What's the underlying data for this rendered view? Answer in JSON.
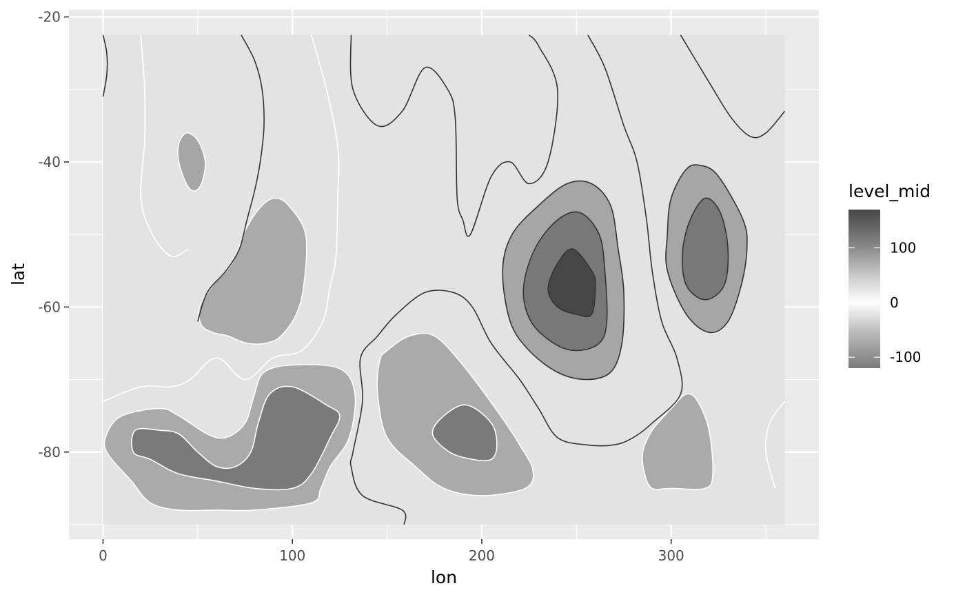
{
  "chart_data": {
    "type": "contour",
    "xlabel": "lon",
    "ylabel": "lat",
    "xlim": [
      -18,
      378
    ],
    "ylim": [
      -92,
      -19
    ],
    "x_ticks": [
      0,
      100,
      200,
      300
    ],
    "x_tick_labels": [
      "0",
      "100",
      "200",
      "300"
    ],
    "y_ticks": [
      -20,
      -40,
      -60,
      -80
    ],
    "y_tick_labels": [
      "-20",
      "-40",
      "-60",
      "-80"
    ],
    "grid": true,
    "data_extent": {
      "lon": [
        0,
        360
      ],
      "lat": [
        -90,
        -22.5
      ]
    },
    "background_fill": "#e3e3e3",
    "panel_color": "#ebebeb",
    "grid_color": "#ffffff",
    "legend": {
      "title": "level_mid",
      "position": "right",
      "range": [
        -120,
        170
      ],
      "ticks": [
        100,
        0,
        -100
      ],
      "tick_labels": [
        "100",
        "0",
        "-100"
      ],
      "gradient": [
        {
          "value": 170,
          "color": "#474747"
        },
        {
          "value": 100,
          "color": "#8a8a8a"
        },
        {
          "value": 50,
          "color": "#c9c9c9"
        },
        {
          "value": 0,
          "color": "#ffffff"
        },
        {
          "value": -50,
          "color": "#c0c0c0"
        },
        {
          "value": -120,
          "color": "#7a7a7a"
        }
      ]
    },
    "regions": [
      {
        "name": "west-blob-small",
        "fill": "#a6a6a6",
        "level_mid": -60,
        "outline": [
          [
            40,
            -37.5
          ],
          [
            44,
            -36
          ],
          [
            50,
            -37
          ],
          [
            54,
            -40
          ],
          [
            52,
            -43
          ],
          [
            48,
            -44
          ],
          [
            44,
            -43
          ],
          [
            40,
            -40
          ]
        ]
      },
      {
        "name": "west-blob-medium",
        "fill": "#aaaaaa",
        "level_mid": -60,
        "outline": [
          [
            52,
            -62.5
          ],
          [
            51,
            -60
          ],
          [
            58,
            -57
          ],
          [
            68,
            -54
          ],
          [
            76,
            -49
          ],
          [
            84,
            -46
          ],
          [
            91,
            -45
          ],
          [
            98,
            -46
          ],
          [
            107,
            -50
          ],
          [
            106,
            -57
          ],
          [
            102,
            -61
          ],
          [
            94,
            -64
          ],
          [
            86,
            -65
          ],
          [
            76,
            -65
          ],
          [
            66,
            -64
          ],
          [
            58,
            -63.5
          ]
        ]
      },
      {
        "name": "southwest-outer",
        "fill": "#aaaaaa",
        "level_mid": -60,
        "outline": [
          [
            2,
            -77.5
          ],
          [
            10,
            -75
          ],
          [
            30,
            -74
          ],
          [
            40,
            -75
          ],
          [
            55,
            -77.5
          ],
          [
            65,
            -78
          ],
          [
            75,
            -76
          ],
          [
            80,
            -72
          ],
          [
            85,
            -69
          ],
          [
            100,
            -68
          ],
          [
            125,
            -68.5
          ],
          [
            133,
            -72
          ],
          [
            130,
            -78
          ],
          [
            120,
            -82
          ],
          [
            115,
            -85
          ],
          [
            110,
            -87
          ],
          [
            80,
            -88
          ],
          [
            60,
            -88
          ],
          [
            40,
            -88
          ],
          [
            25,
            -87
          ],
          [
            15,
            -84
          ],
          [
            2,
            -80
          ]
        ]
      },
      {
        "name": "southwest-inner",
        "fill": "#7a7a7a",
        "level_mid": -100,
        "outline": [
          [
            16,
            -80
          ],
          [
            17,
            -77
          ],
          [
            30,
            -77
          ],
          [
            40,
            -77.5
          ],
          [
            50,
            -80
          ],
          [
            60,
            -82
          ],
          [
            70,
            -82
          ],
          [
            78,
            -80
          ],
          [
            82,
            -76
          ],
          [
            88,
            -72
          ],
          [
            100,
            -71
          ],
          [
            118,
            -73.5
          ],
          [
            125,
            -75
          ],
          [
            120,
            -78
          ],
          [
            110,
            -83
          ],
          [
            100,
            -85
          ],
          [
            80,
            -85
          ],
          [
            60,
            -84
          ],
          [
            40,
            -83
          ],
          [
            25,
            -81
          ]
        ]
      },
      {
        "name": "south-center-outer",
        "fill": "#aaaaaa",
        "level_mid": -60,
        "outline": [
          [
            146,
            -67.5
          ],
          [
            150,
            -66
          ],
          [
            162,
            -64
          ],
          [
            175,
            -64
          ],
          [
            190,
            -68
          ],
          [
            210,
            -75
          ],
          [
            220,
            -79
          ],
          [
            227,
            -82.5
          ],
          [
            223,
            -85
          ],
          [
            200,
            -86
          ],
          [
            180,
            -85
          ],
          [
            165,
            -82
          ],
          [
            150,
            -78
          ],
          [
            145,
            -72
          ]
        ]
      },
      {
        "name": "south-center-inner",
        "fill": "#7a7a7a",
        "level_mid": -100,
        "outline": [
          [
            174,
            -77.5
          ],
          [
            180,
            -75
          ],
          [
            192,
            -73.5
          ],
          [
            205,
            -76
          ],
          [
            208,
            -79
          ],
          [
            205,
            -81
          ],
          [
            195,
            -81
          ],
          [
            183,
            -80
          ]
        ]
      },
      {
        "name": "east-peak-outer",
        "fill": "#a6a6a6",
        "level_mid": 70,
        "outline": [
          [
            211,
            -55
          ],
          [
            216,
            -50
          ],
          [
            230,
            -46
          ],
          [
            245,
            -43
          ],
          [
            258,
            -43
          ],
          [
            268,
            -46
          ],
          [
            272,
            -52
          ],
          [
            275,
            -58
          ],
          [
            274,
            -65
          ],
          [
            268,
            -69
          ],
          [
            255,
            -70
          ],
          [
            240,
            -69
          ],
          [
            225,
            -66
          ],
          [
            215,
            -62
          ]
        ]
      },
      {
        "name": "east-peak-mid",
        "fill": "#787878",
        "level_mid": 120,
        "outline": [
          [
            222,
            -57.5
          ],
          [
            228,
            -52
          ],
          [
            240,
            -48
          ],
          [
            252,
            -47
          ],
          [
            262,
            -50
          ],
          [
            265,
            -55
          ],
          [
            266,
            -62
          ],
          [
            262,
            -65
          ],
          [
            250,
            -66
          ],
          [
            238,
            -65
          ],
          [
            226,
            -62
          ]
        ]
      },
      {
        "name": "east-peak-inner",
        "fill": "#474747",
        "level_mid": 170,
        "outline": [
          [
            235,
            -57.5
          ],
          [
            240,
            -54
          ],
          [
            248,
            -52
          ],
          [
            258,
            -55
          ],
          [
            260,
            -57
          ],
          [
            258,
            -61
          ],
          [
            250,
            -61
          ],
          [
            240,
            -60
          ]
        ]
      },
      {
        "name": "far-east-outer",
        "fill": "#a6a6a6",
        "level_mid": 70,
        "outline": [
          [
            298,
            -50
          ],
          [
            300,
            -45
          ],
          [
            308,
            -41
          ],
          [
            316,
            -40.5
          ],
          [
            325,
            -42
          ],
          [
            338,
            -48
          ],
          [
            340,
            -52
          ],
          [
            337,
            -57
          ],
          [
            330,
            -62
          ],
          [
            320,
            -63.5
          ],
          [
            308,
            -61
          ],
          [
            298,
            -55
          ]
        ]
      },
      {
        "name": "far-east-inner",
        "fill": "#787878",
        "level_mid": 120,
        "outline": [
          [
            306,
            -52.5
          ],
          [
            310,
            -48
          ],
          [
            318,
            -45
          ],
          [
            326,
            -47
          ],
          [
            330,
            -52
          ],
          [
            328,
            -57
          ],
          [
            318,
            -59
          ],
          [
            308,
            -57
          ]
        ]
      },
      {
        "name": "southeast-blob",
        "fill": "#aaaaaa",
        "level_mid": -60,
        "outline": [
          [
            285,
            -80
          ],
          [
            290,
            -77
          ],
          [
            300,
            -74
          ],
          [
            308,
            -72
          ],
          [
            314,
            -73
          ],
          [
            320,
            -77
          ],
          [
            322,
            -83
          ],
          [
            318,
            -85
          ],
          [
            300,
            -85
          ],
          [
            290,
            -85
          ],
          [
            286,
            -83
          ]
        ]
      }
    ],
    "contour_lines": [
      {
        "name": "line-a",
        "color": "#333333",
        "points": [
          [
            0,
            -31
          ],
          [
            2,
            -28
          ],
          [
            2,
            -25
          ],
          [
            0,
            -22.5
          ]
        ]
      },
      {
        "name": "line-b",
        "color": "#333333",
        "points": [
          [
            73,
            -22.5
          ],
          [
            80,
            -26
          ],
          [
            84,
            -30
          ],
          [
            85,
            -35
          ],
          [
            83,
            -40
          ],
          [
            80,
            -44
          ],
          [
            76,
            -48
          ],
          [
            72,
            -52
          ],
          [
            65,
            -55
          ],
          [
            55,
            -58
          ],
          [
            50,
            -62
          ]
        ]
      },
      {
        "name": "line-c",
        "color": "#333333",
        "points": [
          [
            131,
            -22.5
          ],
          [
            132,
            -30
          ],
          [
            145,
            -35
          ],
          [
            158,
            -33
          ],
          [
            170,
            -27
          ],
          [
            182,
            -30
          ],
          [
            186,
            -34
          ],
          [
            187,
            -45
          ],
          [
            190,
            -48
          ],
          [
            194,
            -50
          ],
          [
            205,
            -42
          ],
          [
            215,
            -40
          ],
          [
            225,
            -43
          ],
          [
            235,
            -40
          ],
          [
            240,
            -30
          ],
          [
            230,
            -24
          ],
          [
            225,
            -22.5
          ]
        ]
      },
      {
        "name": "line-d",
        "color": "#333333",
        "points": [
          [
            256,
            -22.5
          ],
          [
            265,
            -27
          ],
          [
            275,
            -35
          ],
          [
            282,
            -40
          ],
          [
            287,
            -48
          ],
          [
            290,
            -55
          ],
          [
            295,
            -62
          ],
          [
            303,
            -67
          ],
          [
            305,
            -72
          ],
          [
            290,
            -76
          ],
          [
            280,
            -78
          ],
          [
            270,
            -79
          ],
          [
            255,
            -79
          ],
          [
            240,
            -78
          ],
          [
            230,
            -74
          ],
          [
            220,
            -70
          ],
          [
            205,
            -65
          ],
          [
            195,
            -60
          ],
          [
            185,
            -58
          ],
          [
            170,
            -58
          ],
          [
            155,
            -61
          ],
          [
            145,
            -64
          ],
          [
            136,
            -67
          ],
          [
            137,
            -73
          ],
          [
            132,
            -80
          ],
          [
            131,
            -82
          ],
          [
            137,
            -86
          ],
          [
            158,
            -88
          ],
          [
            159,
            -90
          ]
        ]
      },
      {
        "name": "line-e",
        "color": "#333333",
        "points": [
          [
            360,
            -33
          ],
          [
            350,
            -36
          ],
          [
            342,
            -36.5
          ],
          [
            332,
            -34
          ],
          [
            320,
            -29
          ],
          [
            305,
            -22.5
          ]
        ]
      },
      {
        "name": "line-f",
        "color": "#ffffff",
        "points": [
          [
            20,
            -22.5
          ],
          [
            22,
            -30
          ],
          [
            22,
            -37
          ],
          [
            20,
            -45
          ],
          [
            26,
            -50
          ],
          [
            36,
            -53
          ],
          [
            45,
            -52
          ]
        ]
      },
      {
        "name": "line-g",
        "color": "#ffffff",
        "points": [
          [
            110,
            -22.5
          ],
          [
            118,
            -30
          ],
          [
            124,
            -38
          ],
          [
            124,
            -45
          ],
          [
            123,
            -53
          ],
          [
            120,
            -57
          ],
          [
            116,
            -62
          ],
          [
            105,
            -66
          ],
          [
            90,
            -67
          ],
          [
            75,
            -70
          ],
          [
            60,
            -67
          ],
          [
            46,
            -70
          ],
          [
            36,
            -71
          ],
          [
            20,
            -71
          ],
          [
            0,
            -73
          ]
        ]
      },
      {
        "name": "line-h",
        "color": "#ffffff",
        "points": [
          [
            360,
            -73
          ],
          [
            352,
            -76
          ],
          [
            350,
            -80
          ],
          [
            355,
            -85
          ]
        ]
      }
    ]
  }
}
